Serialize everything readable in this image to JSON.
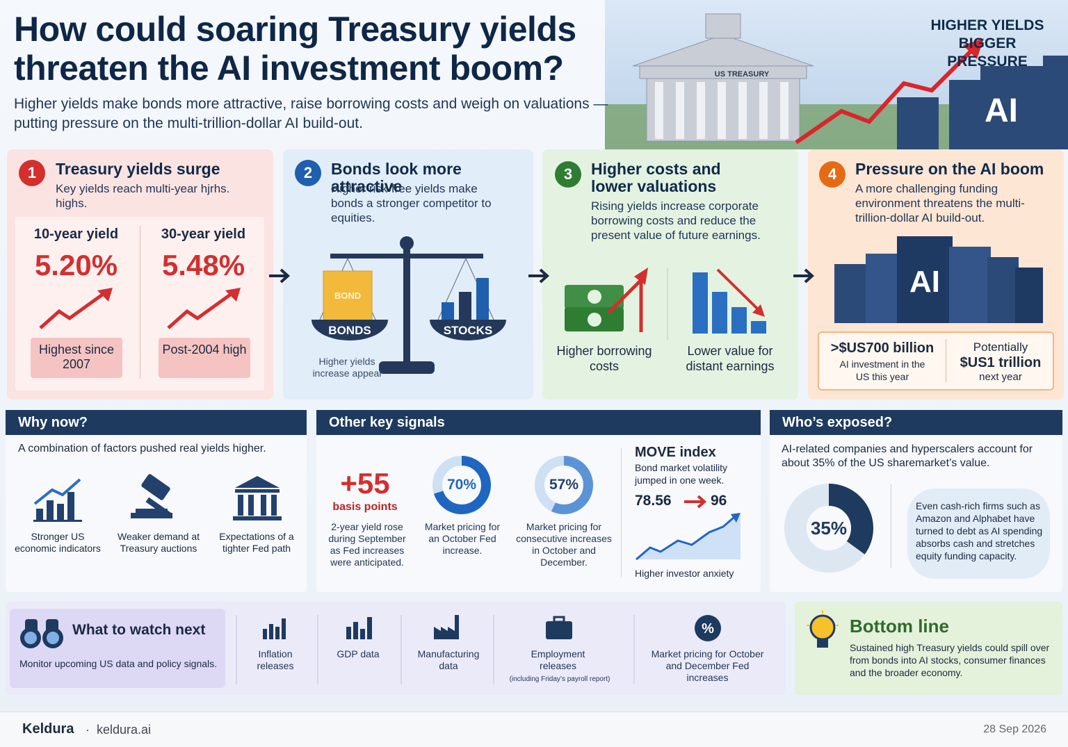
{
  "header": {
    "title": "How could soaring Treasury yields threaten the AI investment boom?",
    "subtitle": "Higher yields make bonds more attractive, raise borrowing costs and weigh on valuations — putting pressure on the multi-trillion-dollar AI build-out.",
    "hero_label": "US TREASURY",
    "hero_tagline": "HIGHER YIELDS BIGGER PRESSURE",
    "hero_ai": "AI"
  },
  "steps": [
    {
      "number": "1",
      "title": "Treasury yields surge",
      "text": "Key yields reach multi-year hjrhs. highs.",
      "metrics": [
        {
          "label": "10-year yield",
          "value": "5.20%",
          "note": "Highest since 2007"
        },
        {
          "label": "30-year yield",
          "value": "5.48%",
          "note": "Post-2004 high"
        }
      ]
    },
    {
      "number": "2",
      "title": "Bonds look more attractive",
      "text": "Higher risk-free yields make bonds a stronger competitor to equities.",
      "bond_tag": "BOND",
      "left_label": "BONDS",
      "right_label": "STOCKS",
      "caption": "Higher yields increase appeal"
    },
    {
      "number": "3",
      "title": "Higher costs and lower valuations",
      "text": "Rising yields increase corporate borrowing costs and reduce the present value of future earnings.",
      "items": [
        "Higher borrowing costs",
        "Lower value for distant earnings"
      ]
    },
    {
      "number": "4",
      "title": "Pressure on the AI boom",
      "text": "A more challenging funding environment threatens the multi-trillion-dollar AI build-out.",
      "server_label": "AI",
      "stats": [
        {
          "value": ">$US700 billion",
          "label": "AI investment in the US this year"
        },
        {
          "prefix": "Potentially",
          "value": "$US1 trillion",
          "label": "next year"
        }
      ]
    }
  ],
  "why_now": {
    "title": "Why now?",
    "intro": "A combination of factors pushed real yields higher.",
    "factors": [
      "Stronger US economic indicators",
      "Weaker demand at Treasury auctions",
      "Expectations of a tighter Fed path"
    ]
  },
  "signals": {
    "title": "Other key signals",
    "basis": {
      "value": "+55",
      "unit": "basis points",
      "text": "2-year yield rose during September as Fed increases were anticipated."
    },
    "donuts": [
      {
        "value": 70,
        "label": "70%",
        "text": "Market pricing for an October Fed increase."
      },
      {
        "value": 57,
        "label": "57%",
        "text": "Market pricing for consecutive increases in October and December."
      }
    ],
    "move": {
      "title": "MOVE index",
      "text": "Bond market volatility jumped in one week.",
      "from": "78.56",
      "to": "96",
      "caption": "Higher investor anxiety"
    }
  },
  "exposed": {
    "title": "Who’s exposed?",
    "text": "AI-related companies and hyperscalers account for about 35% of the US sharemarket’s value.",
    "share": {
      "value": 35,
      "label": "35%"
    },
    "note": "Even cash-rich firms such as Amazon and Alphabet have turned to debt as AI spending absorbs cash and stretches equity funding capacity."
  },
  "watch": {
    "title": "What to watch next",
    "text": "Monitor upcoming US data and policy signals.",
    "items": [
      {
        "label": "Inflation releases"
      },
      {
        "label": "GDP data"
      },
      {
        "label": "Manufacturing data"
      },
      {
        "label": "Employment releases",
        "note": "(including Friday’s payroll report)"
      },
      {
        "label": "Market pricing for October and December Fed increases"
      }
    ]
  },
  "bottom_line": {
    "title": "Bottom line",
    "text": "Sustained high Treasury yields could spill over from bonds into AI stocks, consumer finances and the broader economy."
  },
  "footer": {
    "brand": "Keldura",
    "site": "keldura.ai",
    "date": "28 Sep 2026"
  }
}
